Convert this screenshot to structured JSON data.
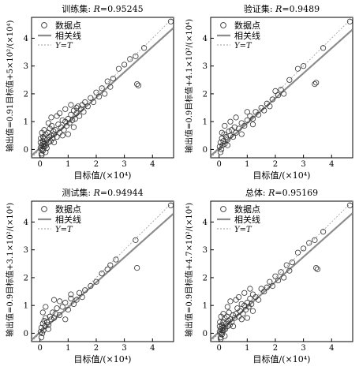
{
  "chart_data": [
    {
      "type": "scatter",
      "title_prefix": "训练集: ",
      "r_label": "R",
      "r_value": "=0.95245",
      "xlabel": "目标值/(×10⁴)",
      "ylabel": "输出值=0.91目标值+5×10²/(×10⁴)",
      "xlim": [
        -0.3,
        4.75
      ],
      "ylim": [
        -0.3,
        4.75
      ],
      "xticks": [
        "0",
        "1",
        "2",
        "3",
        "4"
      ],
      "yticks": [
        "0",
        "1",
        "2",
        "3",
        "4"
      ],
      "fit": {
        "slope": 0.91,
        "intercept": 0.05
      },
      "legend": {
        "placement": "top-left",
        "items": [
          "数据点",
          "相关线",
          "Y=T"
        ]
      },
      "points_x": [
        0.02,
        0.05,
        0.08,
        0.1,
        0.12,
        0.15,
        0.18,
        0.2,
        0.22,
        0.25,
        0.28,
        0.3,
        0.33,
        0.35,
        0.38,
        0.4,
        0.42,
        0.45,
        0.48,
        0.5,
        0.55,
        0.6,
        0.65,
        0.7,
        0.75,
        0.8,
        0.85,
        0.9,
        0.95,
        1.0,
        1.05,
        1.1,
        1.15,
        1.2,
        1.25,
        1.3,
        1.35,
        1.4,
        1.45,
        1.5,
        1.55,
        1.6,
        1.7,
        1.8,
        1.9,
        2.0,
        2.1,
        2.2,
        2.3,
        2.4,
        2.5,
        2.6,
        2.8,
        3.0,
        3.2,
        3.4,
        3.45,
        3.5,
        3.7,
        0.05,
        0.1,
        0.15,
        0.2,
        0.3,
        0.4,
        0.5,
        0.6,
        0.7,
        0.8,
        0.9,
        1.0,
        1.1,
        1.2,
        1.3,
        0.02,
        0.06,
        0.12,
        0.16,
        0.24,
        0.03,
        0.07,
        0.11,
        4.65
      ],
      "points_y": [
        0.05,
        0.15,
        0.0,
        0.3,
        0.1,
        0.4,
        0.2,
        0.55,
        0.15,
        0.35,
        0.6,
        0.25,
        0.45,
        0.75,
        0.3,
        0.5,
        0.85,
        0.4,
        0.65,
        0.55,
        0.7,
        0.45,
        0.9,
        0.6,
        0.8,
        1.05,
        0.7,
        1.0,
        0.85,
        1.1,
        0.95,
        1.25,
        1.05,
        1.4,
        1.1,
        1.3,
        1.55,
        1.2,
        1.45,
        1.6,
        1.35,
        1.7,
        1.55,
        1.85,
        1.7,
        2.05,
        1.9,
        2.2,
        2.0,
        2.45,
        2.25,
        2.55,
        2.9,
        3.05,
        3.25,
        3.35,
        2.35,
        2.3,
        3.65,
        -0.15,
        -0.05,
        0.7,
        -0.1,
        0.95,
        1.15,
        0.25,
        1.2,
        1.3,
        0.5,
        1.45,
        0.55,
        1.6,
        0.8,
        1.5,
        0.25,
        -0.2,
        0.2,
        0.1,
        0.05,
        0.4,
        0.6,
        0.45,
        4.6
      ]
    },
    {
      "type": "scatter",
      "title_prefix": "验证集: ",
      "r_label": "R",
      "r_value": "=0.9489",
      "xlabel": "目标值/(×10⁴)",
      "ylabel": "输出值=0.9目标值+4.1×10²/(×10⁴)",
      "xlim": [
        -0.3,
        4.75
      ],
      "ylim": [
        -0.3,
        4.75
      ],
      "xticks": [
        "0",
        "1",
        "2",
        "3",
        "4"
      ],
      "yticks": [
        "0",
        "1",
        "2",
        "3",
        "4"
      ],
      "fit": {
        "slope": 0.9,
        "intercept": 0.041
      },
      "legend": {
        "placement": "top-left",
        "items": [
          "数据点",
          "相关线",
          "Y=T"
        ]
      },
      "points_x": [
        0.02,
        0.05,
        0.08,
        0.1,
        0.12,
        0.15,
        0.18,
        0.2,
        0.25,
        0.3,
        0.35,
        0.4,
        0.45,
        0.5,
        0.55,
        0.6,
        0.7,
        0.8,
        0.9,
        1.0,
        1.1,
        1.2,
        1.3,
        1.4,
        1.5,
        1.6,
        1.7,
        1.8,
        1.9,
        2.0,
        2.1,
        2.2,
        2.3,
        2.5,
        2.8,
        3.0,
        3.4,
        3.45,
        3.7,
        0.05,
        0.1,
        0.2,
        0.3,
        0.4,
        0.6,
        0.8,
        1.0,
        1.2,
        4.65
      ],
      "points_y": [
        0.1,
        0.25,
        0.0,
        0.4,
        0.15,
        0.3,
        0.55,
        0.2,
        0.45,
        0.35,
        0.65,
        0.5,
        0.7,
        0.45,
        0.8,
        0.6,
        0.75,
        0.95,
        0.85,
        1.05,
        1.2,
        1.1,
        1.35,
        1.25,
        1.5,
        1.4,
        1.65,
        1.55,
        1.8,
        2.1,
        1.95,
        2.15,
        2.0,
        2.5,
        2.9,
        3.0,
        2.35,
        2.4,
        3.65,
        -0.1,
        0.6,
        0.85,
        0.15,
        1.0,
        1.15,
        0.55,
        1.35,
        0.9,
        4.6
      ]
    },
    {
      "type": "scatter",
      "title_prefix": "测试集: ",
      "r_label": "R",
      "r_value": "=0.94944",
      "xlabel": "目标值/(×10⁴)",
      "ylabel": "输出值=0.9目标值+3.1×10²/(×10⁴)",
      "xlim": [
        -0.3,
        4.75
      ],
      "ylim": [
        -0.3,
        4.75
      ],
      "xticks": [
        "0",
        "1",
        "2",
        "3",
        "4"
      ],
      "yticks": [
        "0",
        "1",
        "2",
        "3",
        "4"
      ],
      "fit": {
        "slope": 0.9,
        "intercept": 0.031
      },
      "legend": {
        "placement": "top-left",
        "items": [
          "数据点",
          "相关线",
          "Y=T"
        ]
      },
      "points_x": [
        0.02,
        0.05,
        0.08,
        0.1,
        0.12,
        0.15,
        0.18,
        0.2,
        0.25,
        0.3,
        0.35,
        0.4,
        0.45,
        0.5,
        0.55,
        0.6,
        0.7,
        0.8,
        0.9,
        1.0,
        1.1,
        1.2,
        1.3,
        1.4,
        1.5,
        1.6,
        1.8,
        2.0,
        2.2,
        2.4,
        2.5,
        2.7,
        3.4,
        3.45,
        0.05,
        0.1,
        0.2,
        0.3,
        0.5,
        0.7,
        0.9,
        1.1,
        4.65
      ],
      "points_y": [
        0.05,
        0.2,
        0.0,
        0.35,
        0.1,
        0.45,
        0.25,
        0.55,
        0.4,
        0.3,
        0.6,
        0.5,
        0.75,
        0.55,
        0.7,
        0.9,
        0.65,
        0.95,
        1.1,
        0.85,
        1.25,
        1.05,
        1.2,
        1.45,
        1.3,
        1.55,
        1.7,
        1.85,
        2.15,
        2.3,
        2.45,
        2.65,
        3.35,
        2.35,
        -0.15,
        0.75,
        0.95,
        0.15,
        1.2,
        1.15,
        0.5,
        1.4,
        4.6
      ]
    },
    {
      "type": "scatter",
      "title_prefix": "总体: ",
      "r_label": "R",
      "r_value": "=0.95169",
      "xlabel": "目标值/(×10⁴)",
      "ylabel": "输出值=0.9目标值+4.7×10²/(×10⁴)",
      "xlim": [
        -0.3,
        4.75
      ],
      "ylim": [
        -0.3,
        4.75
      ],
      "xticks": [
        "0",
        "1",
        "2",
        "3",
        "4"
      ],
      "yticks": [
        "0",
        "1",
        "2",
        "3",
        "4"
      ],
      "fit": {
        "slope": 0.9,
        "intercept": 0.047
      },
      "legend": {
        "placement": "top-left",
        "items": [
          "数据点",
          "相关线",
          "Y=T"
        ]
      },
      "points_x": [
        0.02,
        0.05,
        0.08,
        0.1,
        0.12,
        0.15,
        0.18,
        0.2,
        0.22,
        0.25,
        0.28,
        0.3,
        0.33,
        0.35,
        0.38,
        0.4,
        0.45,
        0.5,
        0.55,
        0.6,
        0.65,
        0.7,
        0.75,
        0.8,
        0.85,
        0.9,
        0.95,
        1.0,
        1.05,
        1.1,
        1.15,
        1.2,
        1.3,
        1.4,
        1.5,
        1.6,
        1.7,
        1.8,
        1.9,
        2.0,
        2.1,
        2.2,
        2.3,
        2.4,
        2.5,
        2.6,
        2.8,
        3.0,
        3.2,
        3.4,
        3.45,
        3.5,
        3.7,
        0.05,
        0.1,
        0.15,
        0.2,
        0.3,
        0.4,
        0.5,
        0.6,
        0.7,
        0.8,
        0.9,
        1.0,
        1.1,
        1.2,
        0.02,
        0.06,
        0.12,
        0.16,
        0.03,
        0.07,
        4.65
      ],
      "points_y": [
        0.05,
        0.15,
        0.0,
        0.3,
        0.1,
        0.4,
        0.2,
        0.55,
        0.15,
        0.35,
        0.6,
        0.25,
        0.45,
        0.75,
        0.3,
        0.5,
        0.4,
        0.65,
        0.55,
        0.7,
        0.9,
        0.6,
        0.8,
        1.05,
        0.7,
        1.0,
        0.85,
        1.1,
        0.95,
        1.25,
        1.05,
        1.4,
        1.3,
        1.2,
        1.6,
        1.5,
        1.65,
        1.85,
        1.7,
        2.05,
        1.9,
        2.2,
        2.0,
        2.45,
        2.25,
        2.55,
        2.9,
        3.05,
        3.25,
        3.35,
        2.35,
        2.3,
        3.65,
        -0.15,
        -0.05,
        0.7,
        -0.1,
        0.95,
        1.15,
        0.25,
        1.2,
        1.3,
        0.5,
        1.45,
        0.55,
        1.6,
        0.8,
        0.25,
        -0.2,
        0.2,
        0.1,
        0.4,
        0.6,
        4.6
      ]
    }
  ],
  "colors": {
    "points": "#333333",
    "fit_line": "#8c8c8c",
    "ref_line": "#9a9a9a",
    "axes": "#000000"
  }
}
